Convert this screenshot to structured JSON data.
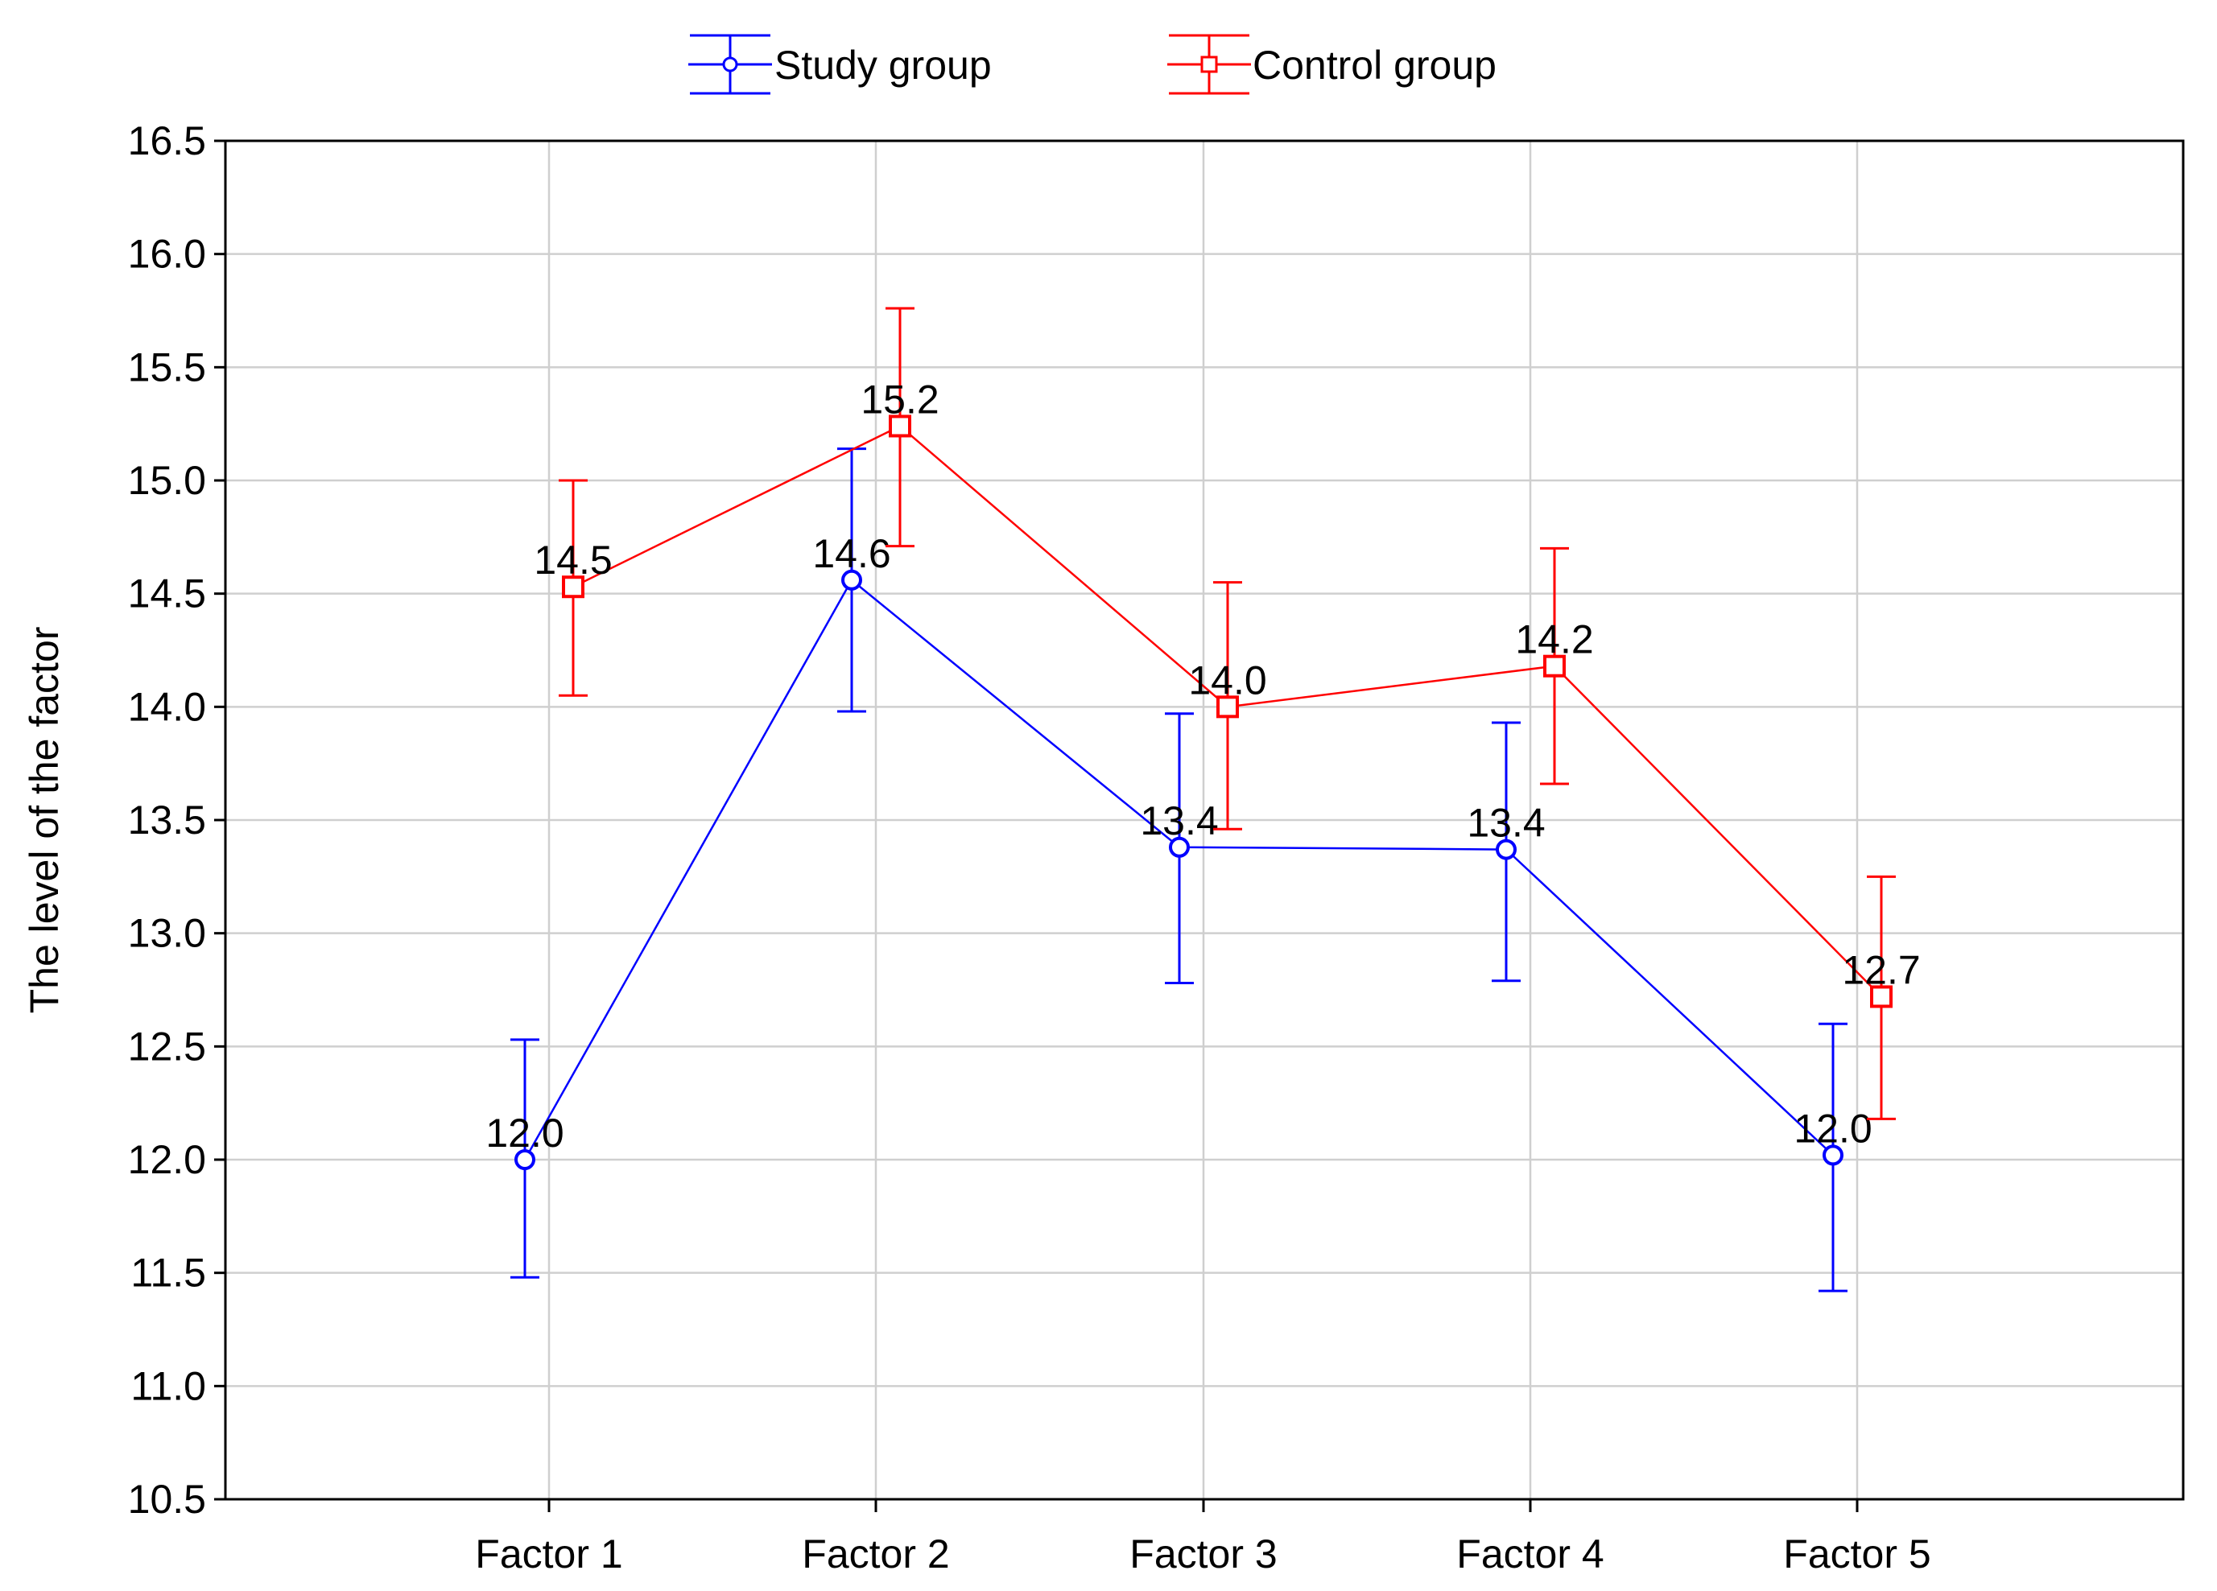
{
  "chart_data": {
    "type": "line",
    "title": "",
    "xlabel": "",
    "ylabel": "The level of the factor",
    "categories": [
      "Factor 1",
      "Factor 2",
      "Factor 3",
      "Factor 4",
      "Factor 5"
    ],
    "ylim": [
      10.5,
      16.5
    ],
    "yticks": [
      "10.5",
      "11.0",
      "11.5",
      "12.0",
      "12.5",
      "13.0",
      "13.5",
      "14.0",
      "14.5",
      "15.0",
      "15.5",
      "16.0",
      "16.5"
    ],
    "grid": true,
    "legend_position": "top-center",
    "series": [
      {
        "name": "Study group",
        "color": "#0000ff",
        "marker": "circle",
        "values": [
          12.0,
          14.56,
          13.38,
          13.37,
          12.02
        ],
        "labels": [
          "12.0",
          "14.6",
          "13.4",
          "13.4",
          "12.0"
        ],
        "err_low": [
          11.48,
          13.98,
          12.78,
          12.79,
          11.42
        ],
        "err_high": [
          12.53,
          15.14,
          13.97,
          13.93,
          12.6
        ]
      },
      {
        "name": "Control group",
        "color": "#ff0000",
        "marker": "square",
        "values": [
          14.53,
          15.24,
          14.0,
          14.18,
          12.72
        ],
        "labels": [
          "14.5",
          "15.2",
          "14.0",
          "14.2",
          "12.7"
        ],
        "err_low": [
          14.05,
          14.71,
          13.46,
          13.66,
          12.18
        ],
        "err_high": [
          15.0,
          15.76,
          14.55,
          14.7,
          13.25
        ]
      }
    ]
  }
}
